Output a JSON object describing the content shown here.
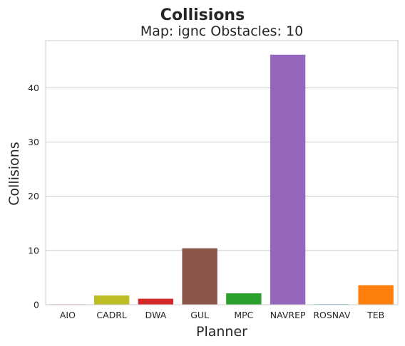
{
  "chart_data": {
    "type": "bar",
    "title": "Collisions",
    "subtitle": "Map: ignc Obstacles: 10",
    "xlabel": "Planner",
    "ylabel": "Collisions",
    "categories": [
      "AIO",
      "CADRL",
      "DWA",
      "GUL",
      "MPC",
      "NAVREP",
      "ROSNAV",
      "TEB"
    ],
    "values": [
      0.1,
      1.7,
      1.1,
      10.4,
      2.1,
      46.1,
      0.1,
      3.6
    ],
    "colors": [
      "#e377c2",
      "#bcbd22",
      "#d62728",
      "#8c564b",
      "#2ca02c",
      "#9467bd",
      "#17becf",
      "#ff7f0e"
    ],
    "ylim": [
      0,
      48.7
    ],
    "yticks": [
      0,
      10,
      20,
      30,
      40
    ],
    "grid": true,
    "grid_color": "#cccccc"
  }
}
